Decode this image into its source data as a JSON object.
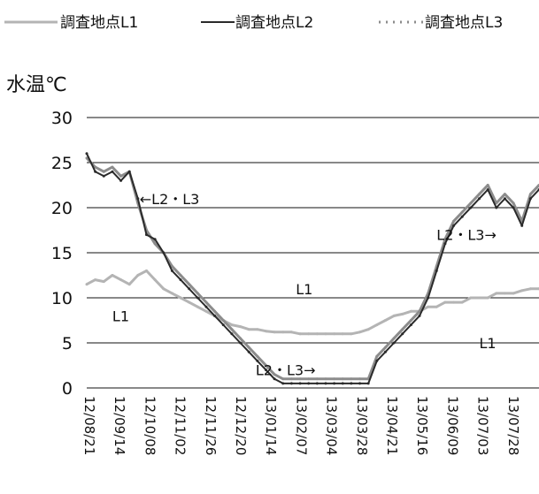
{
  "chart_data": {
    "type": "line",
    "title": "",
    "ylabel": "水温℃",
    "xlabel": "",
    "ylim": [
      0,
      30
    ],
    "yticks": [
      0,
      5,
      10,
      15,
      20,
      25,
      30
    ],
    "grid": true,
    "legend_position": "top",
    "x_tick_labels": [
      "12/08/21",
      "12/09/14",
      "12/10/08",
      "12/11/02",
      "12/11/26",
      "12/12/20",
      "13/01/14",
      "13/02/07",
      "13/03/04",
      "13/03/28",
      "13/04/21",
      "13/05/16",
      "13/06/09",
      "13/07/03",
      "13/07/28"
    ],
    "series": [
      {
        "name": "調査地点L1",
        "color": "#b4b4b4",
        "values": [
          11.5,
          12,
          11.8,
          12.5,
          12,
          11.5,
          12.5,
          13,
          12,
          11,
          10.5,
          10,
          9.5,
          9,
          8.5,
          8,
          7.5,
          7,
          6.8,
          6.5,
          6.5,
          6.3,
          6.2,
          6.2,
          6.2,
          6,
          6,
          6,
          6,
          6,
          6,
          6,
          6.2,
          6.5,
          7,
          7.5,
          8,
          8.2,
          8.5,
          8.5,
          9,
          9,
          9.5,
          9.5,
          9.5,
          10,
          10,
          10,
          10.5,
          10.5,
          10.5,
          10.8,
          11,
          11
        ]
      },
      {
        "name": "調査地点L2",
        "color": "#2a2a2a",
        "values": [
          26,
          24,
          23.5,
          24,
          23,
          24,
          21,
          17,
          16.5,
          15,
          13,
          12,
          11,
          10,
          9,
          8,
          7,
          6,
          5,
          4,
          3,
          2,
          1,
          0.5,
          0.5,
          0.5,
          0.5,
          0.5,
          0.5,
          0.5,
          0.5,
          0.5,
          0.5,
          0.5,
          3,
          4,
          5,
          6,
          7,
          8,
          10,
          13,
          16,
          18,
          19,
          20,
          21,
          22,
          20,
          21,
          20,
          18,
          21,
          22
        ]
      },
      {
        "name": "調査地点L3",
        "color": "#8c8c8c",
        "values": [
          25.5,
          24.5,
          24,
          24.5,
          23.5,
          24,
          20.5,
          17.5,
          16,
          15,
          13.5,
          12.5,
          11.5,
          10.5,
          9.5,
          8.5,
          7.5,
          6.5,
          5.5,
          4.5,
          3.5,
          2.5,
          1.5,
          1,
          1,
          1,
          1,
          1,
          1,
          1,
          1,
          1,
          1,
          1,
          3.5,
          4.5,
          5.5,
          6.5,
          7.5,
          8.5,
          10.5,
          13.5,
          16.5,
          18.5,
          19.5,
          20.5,
          21.5,
          22.5,
          20.5,
          21.5,
          20.5,
          18.5,
          21.5,
          22.5
        ]
      }
    ],
    "annotations": [
      {
        "text": "←L2・L3",
        "x_index": 6.2,
        "y": 21
      },
      {
        "text": "L1",
        "x_index": 3,
        "y": 8
      },
      {
        "text": "L2・L3→",
        "x_index": 19.8,
        "y": 2
      },
      {
        "text": "L1",
        "x_index": 24.5,
        "y": 11
      },
      {
        "text": "L2・L3→",
        "x_index": 41,
        "y": 17
      },
      {
        "text": "L1",
        "x_index": 46,
        "y": 5
      }
    ]
  }
}
